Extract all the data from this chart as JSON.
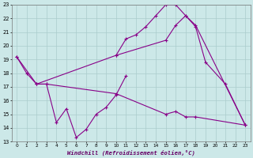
{
  "xlabel": "Windchill (Refroidissement éolien,°C)",
  "bg_color": "#cce8e8",
  "line_color": "#880088",
  "grid_color": "#aacccc",
  "xlim": [
    -0.5,
    23.5
  ],
  "ylim": [
    13,
    23
  ],
  "xticks": [
    0,
    1,
    2,
    3,
    4,
    5,
    6,
    7,
    8,
    9,
    10,
    11,
    12,
    13,
    14,
    15,
    16,
    17,
    18,
    19,
    20,
    21,
    22,
    23
  ],
  "yticks": [
    13,
    14,
    15,
    16,
    17,
    18,
    19,
    20,
    21,
    22,
    23
  ],
  "series": [
    {
      "x": [
        0,
        1,
        2,
        3,
        4,
        5,
        6,
        7,
        8,
        9,
        10,
        11
      ],
      "y": [
        19.2,
        18.0,
        17.2,
        17.2,
        14.4,
        15.4,
        13.3,
        13.9,
        15.0,
        15.5,
        16.4,
        17.8
      ]
    },
    {
      "x": [
        0,
        2,
        3,
        10,
        15,
        16,
        17,
        18,
        23
      ],
      "y": [
        19.2,
        17.2,
        17.2,
        16.5,
        15.0,
        15.2,
        14.8,
        14.8,
        14.2
      ]
    },
    {
      "x": [
        2,
        10,
        15,
        16,
        17,
        18,
        23
      ],
      "y": [
        17.2,
        19.3,
        20.4,
        21.5,
        22.2,
        21.5,
        14.2
      ]
    },
    {
      "x": [
        10,
        11,
        12,
        13,
        14,
        15,
        16,
        17,
        18,
        19,
        21,
        23
      ],
      "y": [
        19.3,
        20.5,
        20.8,
        21.4,
        22.2,
        23.0,
        23.0,
        22.2,
        21.4,
        18.8,
        17.2,
        14.2
      ]
    }
  ]
}
